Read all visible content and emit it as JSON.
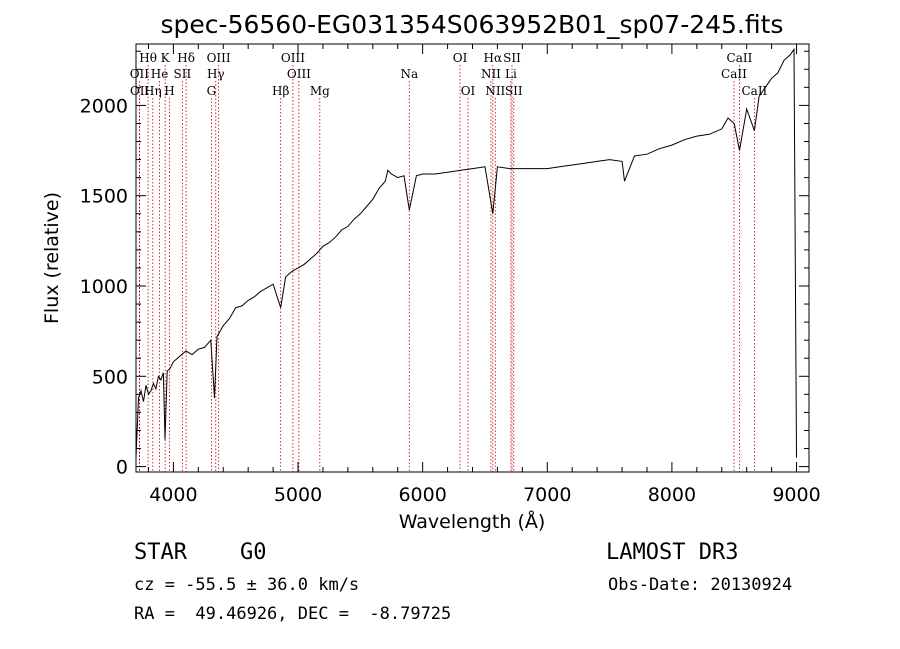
{
  "chart_data": {
    "type": "line",
    "title": "spec-56560-EG031354S063952B01_sp07-245.fits",
    "xlabel": "Wavelength (Å)",
    "ylabel": "Flux (relative)",
    "xlim": [
      3700,
      9100
    ],
    "ylim": [
      -30,
      2340
    ],
    "xticks": [
      4000,
      5000,
      6000,
      7000,
      8000,
      9000
    ],
    "yticks": [
      0,
      500,
      1000,
      1500,
      2000
    ],
    "spectrum": {
      "x": [
        3700,
        3720,
        3740,
        3760,
        3780,
        3800,
        3820,
        3840,
        3860,
        3880,
        3900,
        3920,
        3933,
        3950,
        3970,
        4000,
        4050,
        4100,
        4150,
        4200,
        4250,
        4300,
        4330,
        4350,
        4400,
        4450,
        4500,
        4550,
        4600,
        4650,
        4700,
        4750,
        4800,
        4861,
        4900,
        4950,
        5000,
        5050,
        5100,
        5150,
        5200,
        5250,
        5300,
        5350,
        5400,
        5450,
        5500,
        5550,
        5600,
        5650,
        5700,
        5720,
        5750,
        5800,
        5850,
        5893,
        5950,
        6000,
        6100,
        6200,
        6300,
        6400,
        6500,
        6563,
        6600,
        6700,
        6800,
        6900,
        7000,
        7100,
        7200,
        7300,
        7400,
        7500,
        7600,
        7620,
        7700,
        7800,
        7900,
        8000,
        8100,
        8200,
        8300,
        8400,
        8450,
        8500,
        8542,
        8600,
        8662,
        8700,
        8750,
        8800,
        8850,
        8900,
        8950,
        8980,
        9000
      ],
      "y": [
        50,
        380,
        420,
        360,
        450,
        400,
        420,
        460,
        430,
        500,
        480,
        520,
        150,
        530,
        540,
        580,
        610,
        640,
        620,
        650,
        660,
        700,
        380,
        720,
        780,
        820,
        880,
        890,
        920,
        940,
        970,
        990,
        1010,
        880,
        1050,
        1080,
        1100,
        1120,
        1150,
        1180,
        1220,
        1240,
        1270,
        1310,
        1330,
        1370,
        1400,
        1440,
        1480,
        1540,
        1580,
        1640,
        1620,
        1600,
        1610,
        1420,
        1610,
        1620,
        1620,
        1630,
        1640,
        1650,
        1660,
        1400,
        1660,
        1650,
        1650,
        1650,
        1650,
        1660,
        1670,
        1680,
        1690,
        1700,
        1690,
        1580,
        1720,
        1730,
        1760,
        1780,
        1810,
        1830,
        1840,
        1870,
        1930,
        1900,
        1750,
        1980,
        1860,
        2050,
        2100,
        2150,
        2180,
        2250,
        2280,
        2310,
        50
      ]
    },
    "emission_lines": [
      {
        "label": "Hθ",
        "x": 3797,
        "row": 0
      },
      {
        "label": "K",
        "x": 3934,
        "row": 0
      },
      {
        "label": "Hδ",
        "x": 4102,
        "row": 0
      },
      {
        "label": "OIII",
        "x": 4363,
        "row": 0
      },
      {
        "label": "OIII",
        "x": 4959,
        "row": 0
      },
      {
        "label": "OI",
        "x": 6300,
        "row": 0
      },
      {
        "label": "Hα",
        "x": 6563,
        "row": 0
      },
      {
        "label": "SII",
        "x": 6717,
        "row": 0
      },
      {
        "label": "CaII",
        "x": 8542,
        "row": 0
      },
      {
        "label": "OII",
        "x": 3727,
        "row": 1
      },
      {
        "label": "He",
        "x": 3889,
        "row": 1
      },
      {
        "label": "SII",
        "x": 4072,
        "row": 1
      },
      {
        "label": "Hγ",
        "x": 4340,
        "row": 1
      },
      {
        "label": "OIII",
        "x": 5007,
        "row": 1
      },
      {
        "label": "Na",
        "x": 5893,
        "row": 1
      },
      {
        "label": "NII",
        "x": 6548,
        "row": 1
      },
      {
        "label": "Li",
        "x": 6708,
        "row": 1
      },
      {
        "label": "CaII",
        "x": 8498,
        "row": 1
      },
      {
        "label": "OII",
        "x": 3729,
        "row": 2
      },
      {
        "label": "Hη",
        "x": 3835,
        "row": 2
      },
      {
        "label": "H",
        "x": 3969,
        "row": 2
      },
      {
        "label": "G",
        "x": 4305,
        "row": 2
      },
      {
        "label": "Hβ",
        "x": 4861,
        "row": 2
      },
      {
        "label": "Mg",
        "x": 5175,
        "row": 2
      },
      {
        "label": "OI",
        "x": 6364,
        "row": 2
      },
      {
        "label": "NII",
        "x": 6583,
        "row": 2
      },
      {
        "label": "SII",
        "x": 6731,
        "row": 2
      },
      {
        "label": "CaII",
        "x": 8662,
        "row": 2
      }
    ],
    "grid": false
  },
  "info": {
    "object_class": "STAR    G0",
    "survey": "LAMOST DR3",
    "cz": "cz = -55.5 ± 36.0 km/s",
    "obs_date": "Obs-Date: 20130924",
    "radec": "RA =  49.46926, DEC =  -8.79725"
  },
  "colors": {
    "spectrum": "#000000",
    "line_markers": "#c00000",
    "axes": "#000000",
    "background": "#ffffff"
  }
}
